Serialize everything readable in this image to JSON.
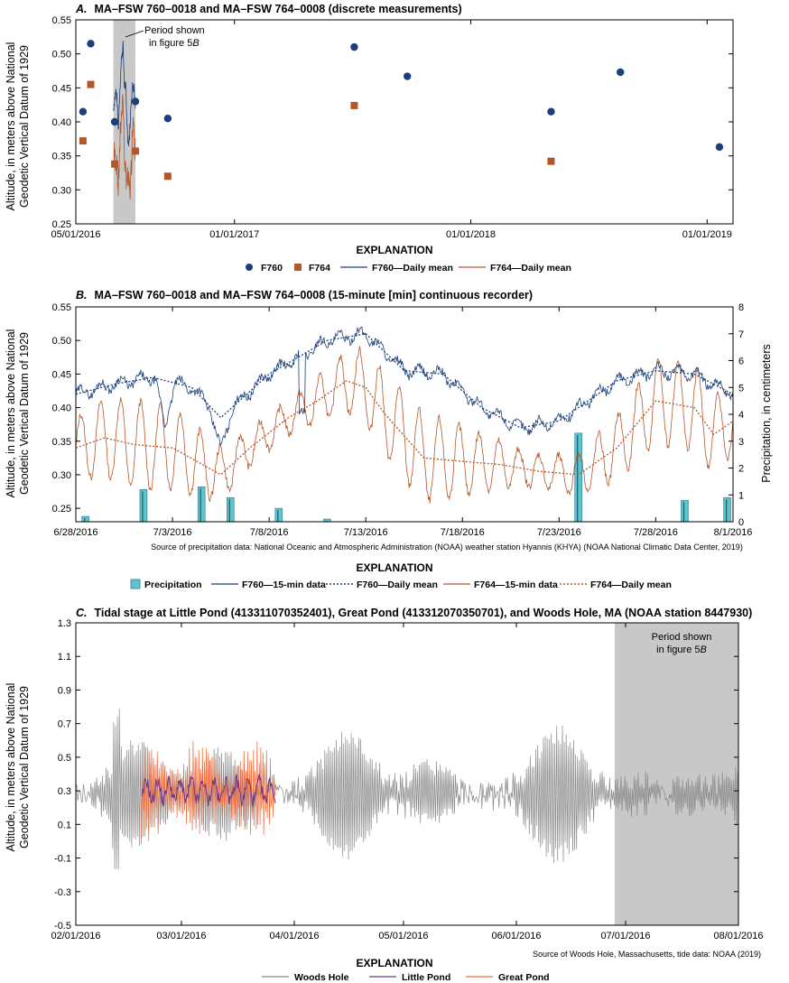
{
  "colors": {
    "f760": "#1b3f7a",
    "f764": "#b5562a",
    "precip": "#5fc3cf",
    "woods_hole": "#8a8a8a",
    "little_pond": "#6b3a8c",
    "great_pond": "#ef6a3c",
    "shade": "#c8c8c8"
  },
  "chart_data": [
    {
      "panel": "A.",
      "type": "scatter",
      "title": "MA–FSW 760–0018 and MA–FSW 764–0008 (discrete measurements)",
      "ylabel_line1": "Altitude, in meters above National",
      "ylabel_line2": "Geodetic Vertical Datum of 1929",
      "ylim": [
        0.25,
        0.55
      ],
      "y_ticks": [
        "0.25",
        "0.30",
        "0.35",
        "0.40",
        "0.45",
        "0.50",
        "0.55"
      ],
      "xlim": [
        "2016-05-01",
        "2019-02-10"
      ],
      "x_ticks": [
        "05/01/2016",
        "01/01/2017",
        "01/01/2018",
        "01/01/2019"
      ],
      "annotation": {
        "line1": "Period shown",
        "line2": "in figure 5",
        "letter": "B"
      },
      "shaded_range": [
        "2016-06-28",
        "2016-08-01"
      ],
      "series": [
        {
          "name": "F760",
          "marker": "circle",
          "x": [
            "2016-05-12",
            "2016-05-24",
            "2016-06-30",
            "2016-08-01",
            "2016-09-20",
            "2017-07-05",
            "2017-09-25",
            "2018-05-05",
            "2018-08-20",
            "2019-01-20"
          ],
          "y": [
            0.415,
            0.515,
            0.4,
            0.43,
            0.405,
            0.51,
            0.467,
            0.415,
            0.473,
            0.363
          ]
        },
        {
          "name": "F764",
          "marker": "square",
          "x": [
            "2016-05-12",
            "2016-05-24",
            "2016-06-30",
            "2016-08-01",
            "2016-09-20",
            "2017-07-05",
            "2018-05-05"
          ],
          "y": [
            0.372,
            0.455,
            0.338,
            0.357,
            0.32,
            0.424,
            0.342
          ]
        }
      ],
      "explanation": "EXPLANATION",
      "legend": [
        "F760",
        "F764",
        "F760—Daily mean",
        "F764—Daily mean"
      ]
    },
    {
      "panel": "B.",
      "type": "line",
      "title": "MA–FSW 760–0018 and MA–FSW 764–0008 (15-minute [min] continuous recorder)",
      "ylabel_line1": "Altitude, in meters above National",
      "ylabel_line2": "Geodetic Vertical Datum of 1929",
      "ylabel_right": "Precipitation, in centimeters",
      "ylim": [
        0.23,
        0.55
      ],
      "y_ticks": [
        "0.25",
        "0.30",
        "0.35",
        "0.40",
        "0.45",
        "0.50",
        "0.55"
      ],
      "y2lim": [
        0,
        8
      ],
      "y2_ticks": [
        "0",
        "1",
        "2",
        "3",
        "4",
        "5",
        "6",
        "7",
        "8"
      ],
      "xlim": [
        "2016-06-28",
        "2016-08-01"
      ],
      "x_ticks": [
        "6/28/2016",
        "7/3/2016",
        "7/8/2016",
        "7/13/2016",
        "7/18/2016",
        "7/23/2016",
        "7/28/2016",
        "8/1/2016"
      ],
      "f760_daily_mean": {
        "x": [
          0,
          2,
          4,
          6,
          7.5,
          10,
          13,
          15,
          17,
          19,
          21,
          23,
          25,
          26,
          28,
          30,
          32,
          34
        ],
        "y": [
          0.42,
          0.435,
          0.445,
          0.43,
          0.385,
          0.45,
          0.5,
          0.51,
          0.455,
          0.45,
          0.4,
          0.37,
          0.38,
          0.4,
          0.44,
          0.455,
          0.45,
          0.42
        ]
      },
      "f764_daily_mean": {
        "x": [
          0,
          1.5,
          3,
          5,
          7.5,
          9,
          11,
          12.5,
          14,
          15,
          16,
          18,
          20,
          22,
          24,
          26,
          28,
          30,
          32,
          33,
          34
        ],
        "y": [
          0.34,
          0.355,
          0.345,
          0.34,
          0.3,
          0.34,
          0.385,
          0.41,
          0.44,
          0.43,
          0.39,
          0.325,
          0.32,
          0.315,
          0.305,
          0.3,
          0.34,
          0.41,
          0.4,
          0.36,
          0.38
        ]
      },
      "precipitation": {
        "x": [
          0.5,
          3.5,
          6.5,
          8,
          10.5,
          13,
          26,
          31.5,
          33.7
        ],
        "y": [
          0.2,
          1.2,
          1.3,
          0.9,
          0.5,
          0.1,
          3.3,
          0.8,
          0.9
        ]
      },
      "source": "Source of precipitation data: National Oceanic and Atmospheric Administration (NOAA) weather station Hyannis (KHYA) (NOAA National Climatic Data Center, 2019)",
      "explanation": "EXPLANATION",
      "legend": [
        "Precipitation",
        "F760—15-min data",
        "F760—Daily mean",
        "F764—15-min data",
        "F764—Daily mean"
      ]
    },
    {
      "panel": "C.",
      "type": "line",
      "title": "Tidal stage at Little Pond (413311070352401), Great Pond (413312070350701), and Woods Hole, MA (NOAA station 8447930)",
      "ylabel_line1": "Altitude, in meters above National",
      "ylabel_line2": "Geodetic Vertical Datum of 1929",
      "ylim": [
        -0.5,
        1.3
      ],
      "y_ticks": [
        "-0.5",
        "-0.3",
        "-0.1",
        "0.1",
        "0.3",
        "0.5",
        "0.7",
        "0.9",
        "1.1",
        "1.3"
      ],
      "xlim": [
        "2016-02-01",
        "2016-08-01"
      ],
      "x_ticks": [
        "02/01/2016",
        "03/01/2016",
        "04/01/2016",
        "05/01/2016",
        "06/01/2016",
        "07/01/2016",
        "08/01/2016"
      ],
      "annotation": {
        "line1": "Period shown",
        "line2": "in figure 5",
        "letter": "B"
      },
      "shaded_range": [
        "2016-06-28",
        "2016-08-01"
      ],
      "woods_hole": {
        "mean": 0.28,
        "range_days": [
          0,
          182
        ]
      },
      "little_pond": {
        "mean": 0.3,
        "range_days": [
          18,
          55
        ]
      },
      "great_pond": {
        "mean": 0.3,
        "range_days": [
          18,
          55
        ]
      },
      "source": "Source of Woods Hole, Massachusetts, tide data: NOAA (2019)",
      "explanation": "EXPLANATION",
      "legend": [
        "Woods Hole",
        "Little Pond",
        "Great Pond"
      ]
    }
  ]
}
